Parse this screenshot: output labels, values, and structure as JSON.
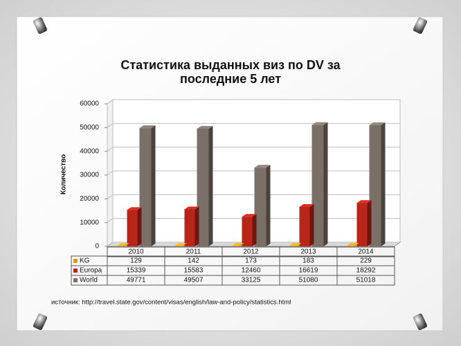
{
  "chart_data": {
    "type": "bar3d",
    "title": "Статистика  выданных виз по DV за последние 5 лет",
    "y_label": "Количество",
    "source": "источник: http://travel.state.gov/content/visas/english/law-and-policy/statistics.html",
    "categories": [
      "2010",
      "2011",
      "2012",
      "2013",
      "2014"
    ],
    "series": [
      {
        "name": "KG",
        "color": "#e39a1b",
        "values": [
          129,
          142,
          173,
          183,
          229
        ]
      },
      {
        "name": "Europa",
        "color": "#b8261a",
        "values": [
          15339,
          15583,
          12460,
          16619,
          18292
        ]
      },
      {
        "name": "World",
        "color": "#7b7067",
        "values": [
          49771,
          49507,
          33125,
          51080,
          51018
        ]
      }
    ],
    "ylim": [
      0,
      60000
    ],
    "yticks": [
      0,
      10000,
      20000,
      30000,
      40000,
      50000,
      60000
    ],
    "grid": true
  }
}
